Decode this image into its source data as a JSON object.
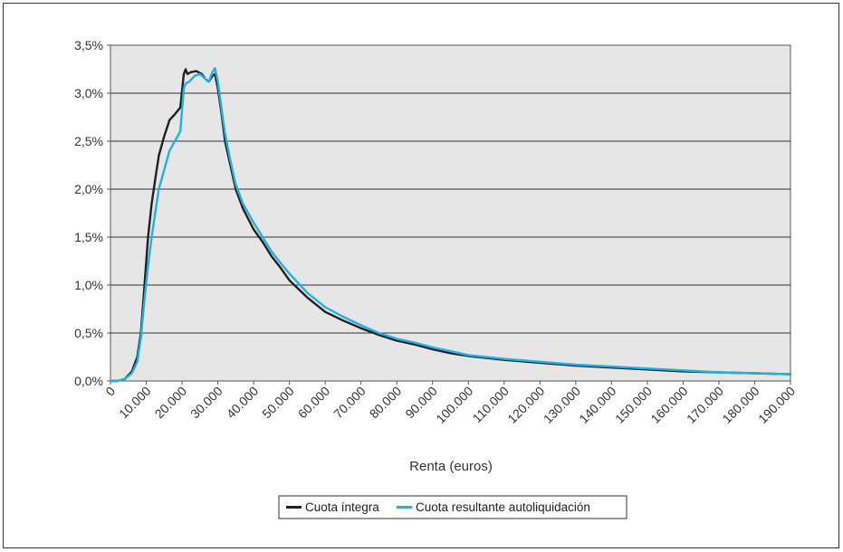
{
  "chart_data": {
    "type": "line",
    "title": "",
    "xlabel": "Renta (euros)",
    "ylabel": "",
    "xlim": [
      0,
      190000
    ],
    "ylim": [
      0,
      3.5
    ],
    "x_ticks": [
      {
        "value": 0,
        "label": "0"
      },
      {
        "value": 10000,
        "label": "10.000"
      },
      {
        "value": 20000,
        "label": "20.000"
      },
      {
        "value": 30000,
        "label": "30.000"
      },
      {
        "value": 40000,
        "label": "40.000"
      },
      {
        "value": 50000,
        "label": "50.000"
      },
      {
        "value": 60000,
        "label": "60.000"
      },
      {
        "value": 70000,
        "label": "70.000"
      },
      {
        "value": 80000,
        "label": "80.000"
      },
      {
        "value": 90000,
        "label": "90.000"
      },
      {
        "value": 100000,
        "label": "100.000"
      },
      {
        "value": 110000,
        "label": "110.000"
      },
      {
        "value": 120000,
        "label": "120.000"
      },
      {
        "value": 130000,
        "label": "130.000"
      },
      {
        "value": 140000,
        "label": "140.000"
      },
      {
        "value": 150000,
        "label": "150.000"
      },
      {
        "value": 160000,
        "label": "160.000"
      },
      {
        "value": 170000,
        "label": "170.000"
      },
      {
        "value": 180000,
        "label": "180.000"
      },
      {
        "value": 190000,
        "label": "190.000"
      }
    ],
    "y_ticks": [
      {
        "value": 0,
        "label": "0,0%"
      },
      {
        "value": 0.5,
        "label": "0,5%"
      },
      {
        "value": 1.0,
        "label": "1,0%"
      },
      {
        "value": 1.5,
        "label": "1,5%"
      },
      {
        "value": 2.0,
        "label": "2,0%"
      },
      {
        "value": 2.5,
        "label": "2,5%"
      },
      {
        "value": 3.0,
        "label": "3,0%"
      },
      {
        "value": 3.5,
        "label": "3,5%"
      }
    ],
    "grid": "horizontal",
    "legend_position": "bottom",
    "series": [
      {
        "name": "Cuota íntegra",
        "color": "#231f20",
        "points": [
          [
            0,
            0
          ],
          [
            2000,
            0
          ],
          [
            4000,
            0.02
          ],
          [
            6000,
            0.1
          ],
          [
            7500,
            0.25
          ],
          [
            8500,
            0.5
          ],
          [
            9500,
            1.0
          ],
          [
            10500,
            1.5
          ],
          [
            11500,
            1.85
          ],
          [
            12500,
            2.1
          ],
          [
            13500,
            2.35
          ],
          [
            15000,
            2.55
          ],
          [
            16500,
            2.72
          ],
          [
            18000,
            2.78
          ],
          [
            19500,
            2.85
          ],
          [
            20500,
            3.2
          ],
          [
            21000,
            3.25
          ],
          [
            21500,
            3.2
          ],
          [
            22500,
            3.22
          ],
          [
            24000,
            3.23
          ],
          [
            25500,
            3.2
          ],
          [
            26500,
            3.15
          ],
          [
            27500,
            3.12
          ],
          [
            28500,
            3.18
          ],
          [
            29200,
            3.2
          ],
          [
            30000,
            3.05
          ],
          [
            31000,
            2.8
          ],
          [
            32000,
            2.5
          ],
          [
            33500,
            2.25
          ],
          [
            35000,
            2.0
          ],
          [
            37000,
            1.8
          ],
          [
            40000,
            1.58
          ],
          [
            42500,
            1.45
          ],
          [
            45000,
            1.3
          ],
          [
            47500,
            1.18
          ],
          [
            50000,
            1.05
          ],
          [
            55000,
            0.87
          ],
          [
            60000,
            0.72
          ],
          [
            65000,
            0.63
          ],
          [
            70000,
            0.55
          ],
          [
            75000,
            0.48
          ],
          [
            80000,
            0.42
          ],
          [
            85000,
            0.38
          ],
          [
            90000,
            0.33
          ],
          [
            95000,
            0.29
          ],
          [
            100000,
            0.26
          ],
          [
            110000,
            0.22
          ],
          [
            120000,
            0.19
          ],
          [
            130000,
            0.16
          ],
          [
            140000,
            0.14
          ],
          [
            150000,
            0.12
          ],
          [
            160000,
            0.1
          ],
          [
            170000,
            0.09
          ],
          [
            180000,
            0.08
          ],
          [
            190000,
            0.07
          ]
        ]
      },
      {
        "name": "Cuota resultante autoliquidación",
        "color": "#1fb1e6",
        "points": [
          [
            0,
            0
          ],
          [
            2000,
            0
          ],
          [
            4000,
            0.02
          ],
          [
            6000,
            0.08
          ],
          [
            7500,
            0.2
          ],
          [
            8500,
            0.45
          ],
          [
            9500,
            0.85
          ],
          [
            10500,
            1.2
          ],
          [
            11500,
            1.5
          ],
          [
            12500,
            1.75
          ],
          [
            13500,
            2.0
          ],
          [
            15000,
            2.2
          ],
          [
            16500,
            2.4
          ],
          [
            18000,
            2.5
          ],
          [
            19500,
            2.6
          ],
          [
            20500,
            3.05
          ],
          [
            21000,
            3.1
          ],
          [
            22000,
            3.12
          ],
          [
            23500,
            3.18
          ],
          [
            25000,
            3.2
          ],
          [
            26500,
            3.15
          ],
          [
            27500,
            3.12
          ],
          [
            28500,
            3.22
          ],
          [
            29200,
            3.26
          ],
          [
            30000,
            3.12
          ],
          [
            31000,
            2.85
          ],
          [
            32000,
            2.58
          ],
          [
            33500,
            2.3
          ],
          [
            35000,
            2.05
          ],
          [
            37000,
            1.85
          ],
          [
            40000,
            1.65
          ],
          [
            42500,
            1.5
          ],
          [
            45000,
            1.35
          ],
          [
            47500,
            1.23
          ],
          [
            50000,
            1.12
          ],
          [
            55000,
            0.92
          ],
          [
            60000,
            0.77
          ],
          [
            65000,
            0.67
          ],
          [
            70000,
            0.58
          ],
          [
            75000,
            0.5
          ],
          [
            80000,
            0.44
          ],
          [
            85000,
            0.4
          ],
          [
            90000,
            0.35
          ],
          [
            95000,
            0.31
          ],
          [
            100000,
            0.27
          ],
          [
            110000,
            0.23
          ],
          [
            120000,
            0.2
          ],
          [
            130000,
            0.17
          ],
          [
            140000,
            0.15
          ],
          [
            150000,
            0.13
          ],
          [
            160000,
            0.11
          ],
          [
            170000,
            0.09
          ],
          [
            180000,
            0.08
          ],
          [
            190000,
            0.07
          ]
        ]
      }
    ]
  }
}
